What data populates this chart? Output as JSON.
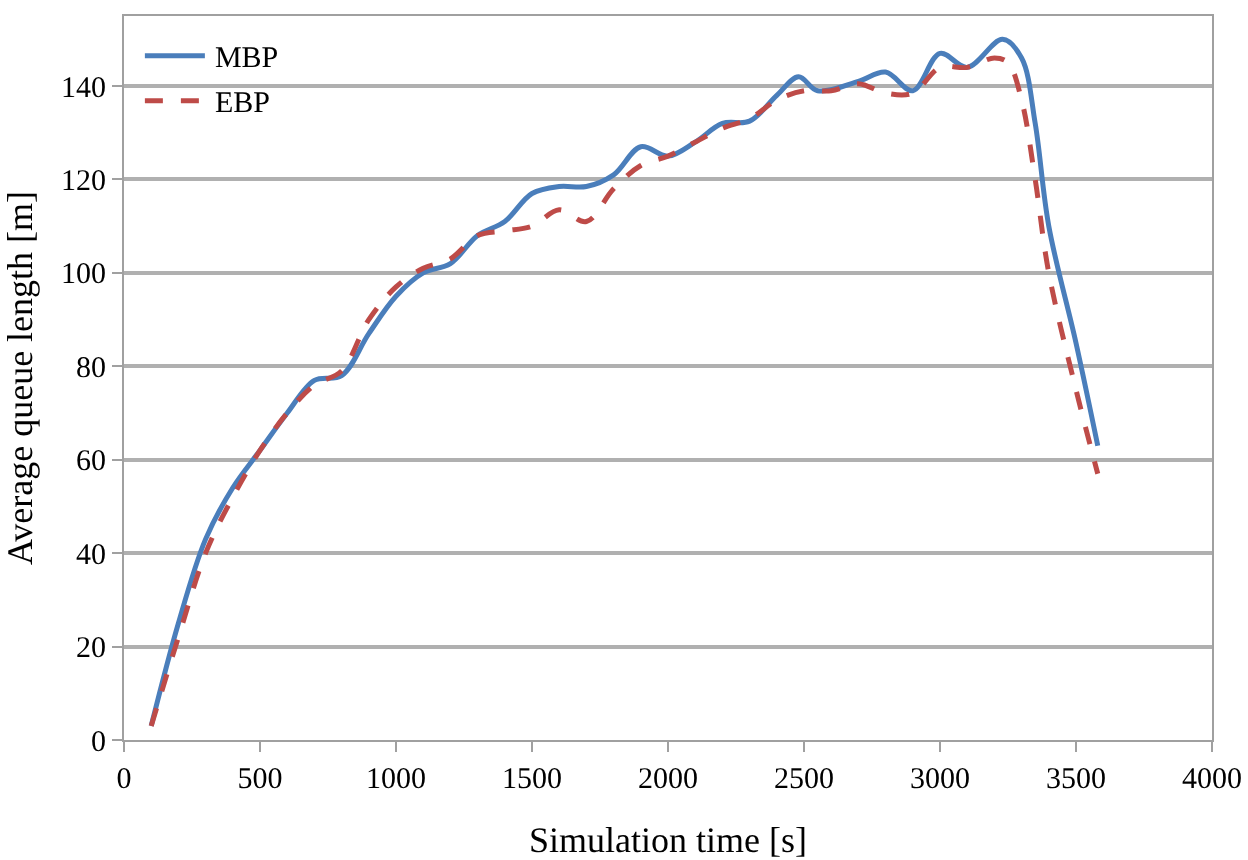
{
  "chart_data": {
    "type": "line",
    "xlabel": "Simulation time [s]",
    "ylabel": "Average queue length [m]",
    "xlim": [
      0,
      4000
    ],
    "xticks": [
      0,
      500,
      1000,
      1500,
      2000,
      2500,
      3000,
      3500,
      4000
    ],
    "ylim": [
      0,
      155
    ],
    "yticks": [
      0,
      20,
      40,
      60,
      80,
      100,
      120,
      140
    ],
    "grid": "y",
    "legend": "top left",
    "marker": "none",
    "series": [
      {
        "name": "MBP",
        "color": "#4a7ebb",
        "line_style": "solid",
        "x": [
          100,
          200,
          300,
          400,
          500,
          600,
          700,
          800,
          900,
          1000,
          1100,
          1200,
          1300,
          1400,
          1500,
          1600,
          1700,
          1800,
          1900,
          2000,
          2100,
          2200,
          2300,
          2400,
          2480,
          2550,
          2700,
          2800,
          2900,
          3000,
          3100,
          3230,
          3300,
          3350,
          3400,
          3500,
          3580
        ],
        "values": [
          3,
          25,
          43,
          54,
          62,
          70,
          77,
          78,
          87,
          95,
          100,
          102,
          108,
          111,
          117,
          118.5,
          118.5,
          121,
          127,
          125,
          128,
          132,
          132.5,
          138,
          142,
          139,
          141,
          143,
          139,
          147,
          144,
          150,
          146,
          132,
          110,
          85,
          63
        ]
      },
      {
        "name": "EBP",
        "color": "#be4b48",
        "line_style": "dashed",
        "x": [
          100,
          200,
          300,
          400,
          500,
          600,
          700,
          800,
          900,
          1000,
          1100,
          1200,
          1300,
          1400,
          1500,
          1600,
          1700,
          1800,
          1900,
          2000,
          2100,
          2200,
          2300,
          2400,
          2500,
          2600,
          2700,
          2800,
          2900,
          3000,
          3100,
          3200,
          3250,
          3300,
          3350,
          3400,
          3500,
          3580
        ],
        "values": [
          3,
          22,
          40,
          52,
          62,
          70,
          76,
          79,
          90,
          97,
          101,
          103,
          108,
          109,
          110,
          113.5,
          111,
          118,
          123,
          125,
          128,
          131,
          133,
          137,
          139,
          139,
          140.5,
          138.5,
          138.5,
          144,
          144,
          146,
          145,
          137,
          120,
          100,
          75,
          57
        ]
      }
    ]
  }
}
